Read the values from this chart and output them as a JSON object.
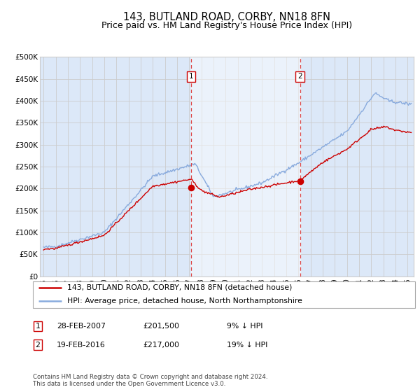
{
  "title": "143, BUTLAND ROAD, CORBY, NN18 8FN",
  "subtitle": "Price paid vs. HM Land Registry's House Price Index (HPI)",
  "ylim": [
    0,
    500000
  ],
  "yticks": [
    0,
    50000,
    100000,
    150000,
    200000,
    250000,
    300000,
    350000,
    400000,
    450000,
    500000
  ],
  "ytick_labels": [
    "£0",
    "£50K",
    "£100K",
    "£150K",
    "£200K",
    "£250K",
    "£300K",
    "£350K",
    "£400K",
    "£450K",
    "£500K"
  ],
  "xlim_start": 1994.7,
  "xlim_end": 2025.5,
  "xticks": [
    1995,
    1996,
    1997,
    1998,
    1999,
    2000,
    2001,
    2002,
    2003,
    2004,
    2005,
    2006,
    2007,
    2008,
    2009,
    2010,
    2011,
    2012,
    2013,
    2014,
    2015,
    2016,
    2017,
    2018,
    2019,
    2020,
    2021,
    2022,
    2023,
    2024,
    2025
  ],
  "grid_color": "#cccccc",
  "background_color": "#ffffff",
  "plot_bg_color": "#dce8f8",
  "sale1_x": 2007.15,
  "sale1_y": 201500,
  "sale2_x": 2016.13,
  "sale2_y": 217000,
  "vline1_x": 2007.15,
  "vline2_x": 2016.13,
  "sale_dot_color": "#cc0000",
  "hpi_line_color": "#88aadd",
  "price_line_color": "#cc0000",
  "vline_color": "#dd4444",
  "shade_color": "#dce8f8",
  "legend1_label": "143, BUTLAND ROAD, CORBY, NN18 8FN (detached house)",
  "legend2_label": "HPI: Average price, detached house, North Northamptonshire",
  "table_row1": [
    "1",
    "28-FEB-2007",
    "£201,500",
    "9% ↓ HPI"
  ],
  "table_row2": [
    "2",
    "19-FEB-2016",
    "£217,000",
    "19% ↓ HPI"
  ],
  "footer": "Contains HM Land Registry data © Crown copyright and database right 2024.\nThis data is licensed under the Open Government Licence v3.0.",
  "title_fontsize": 10.5,
  "subtitle_fontsize": 9
}
